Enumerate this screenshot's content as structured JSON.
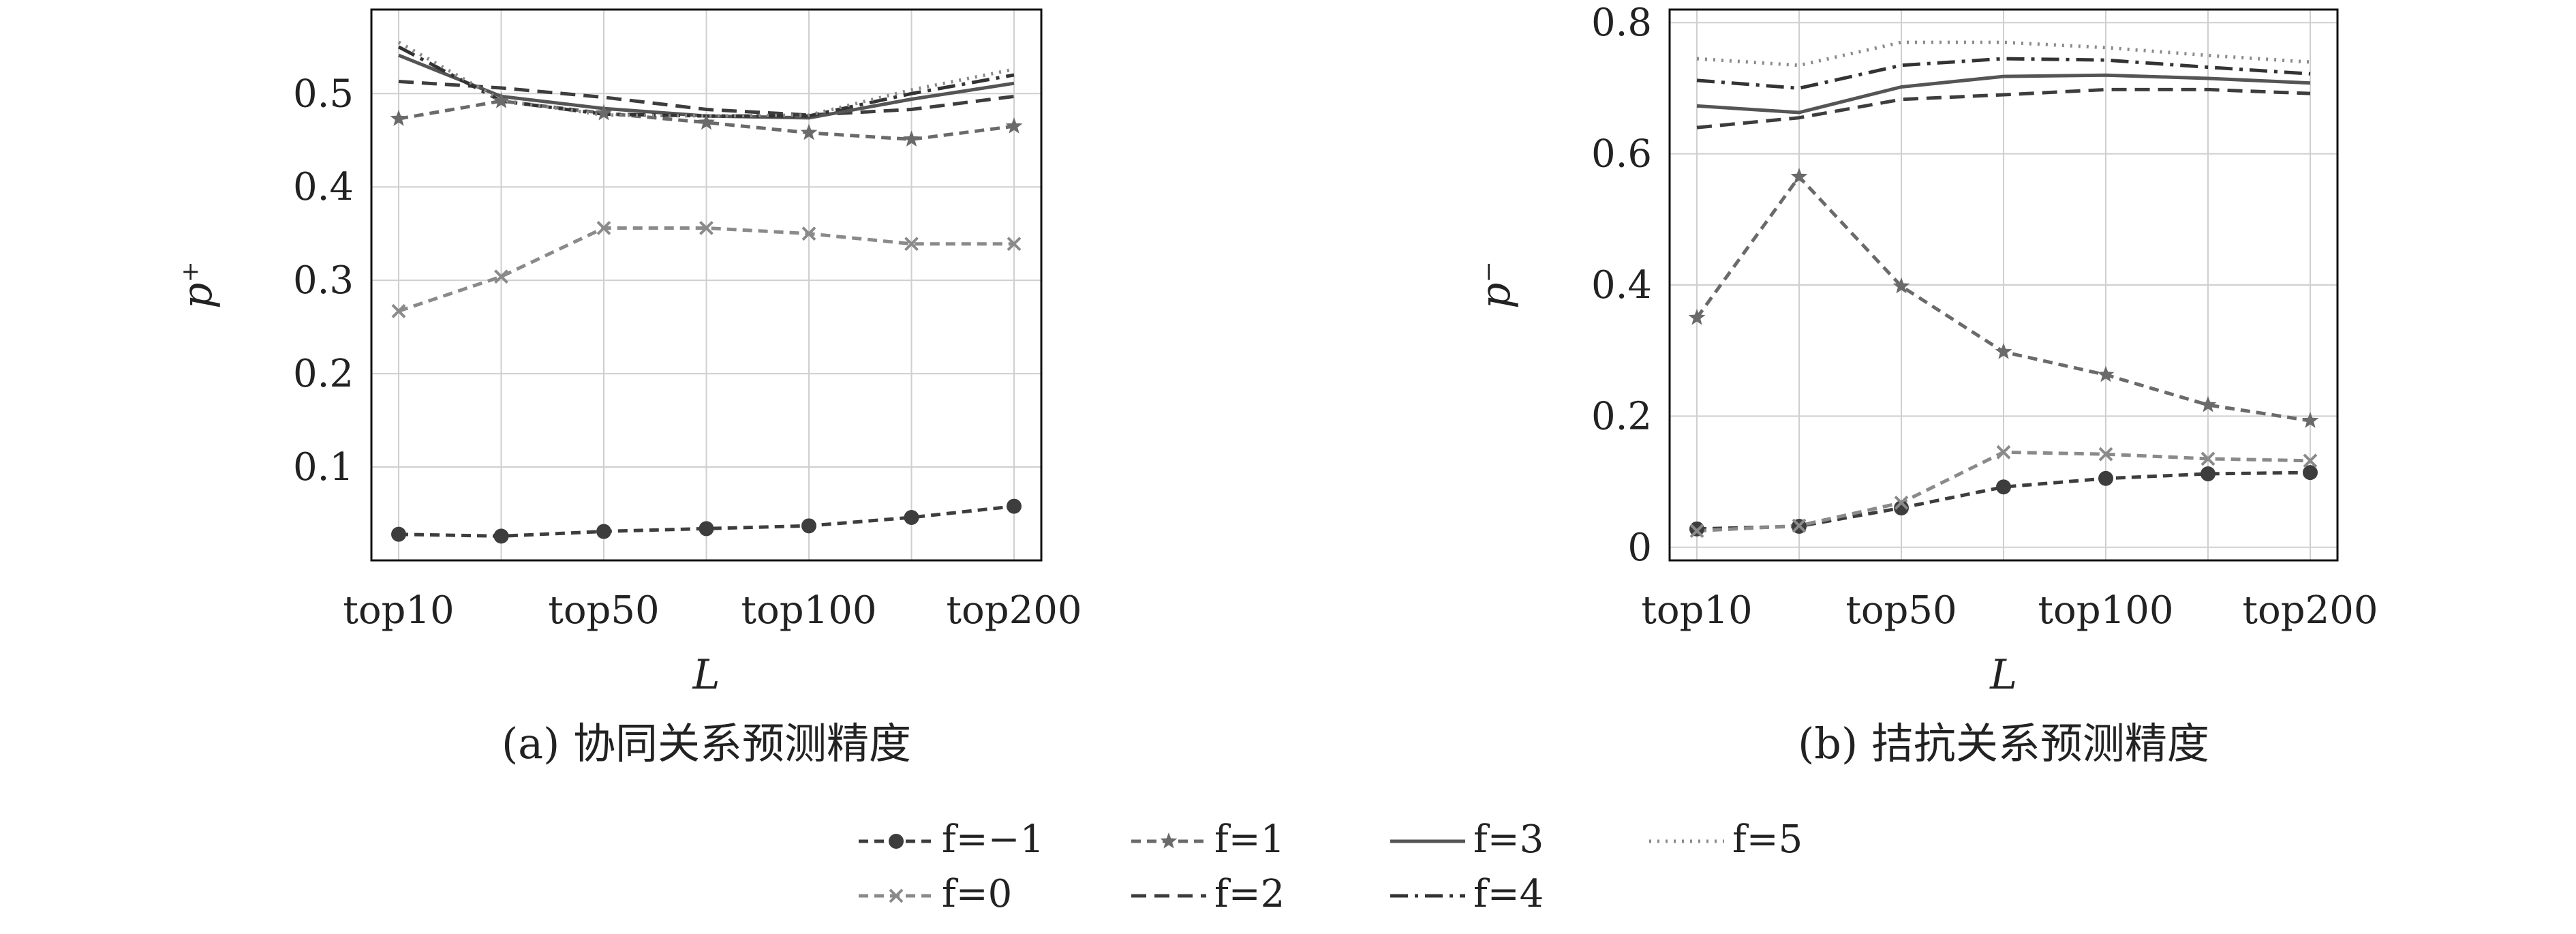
{
  "chart_data": [
    {
      "type": "line",
      "caption": "(a) 协同关系预测精度",
      "xlabel": "L",
      "ylabel": "p⁺",
      "x_labels": [
        "top10",
        "top50",
        "top100",
        "top200"
      ],
      "x_label_positions": [
        10,
        50,
        100,
        200
      ],
      "x": [
        10,
        30,
        50,
        75,
        100,
        150,
        200
      ],
      "y_ticks": [
        "0.1",
        "0.2",
        "0.3",
        "0.4",
        "0.5"
      ],
      "y_tick_values": [
        0.1,
        0.2,
        0.3,
        0.4,
        0.5
      ],
      "ylim": [
        0.0,
        0.59
      ],
      "grid": true,
      "series": [
        {
          "name": "f=−1",
          "values": [
            0.028,
            0.026,
            0.031,
            0.034,
            0.037,
            0.046,
            0.058
          ]
        },
        {
          "name": "f=0",
          "values": [
            0.267,
            0.304,
            0.356,
            0.356,
            0.35,
            0.339,
            0.339
          ]
        },
        {
          "name": "f=1",
          "values": [
            0.473,
            0.492,
            0.479,
            0.469,
            0.458,
            0.451,
            0.465
          ]
        },
        {
          "name": "f=2",
          "values": [
            0.513,
            0.506,
            0.496,
            0.483,
            0.477,
            0.483,
            0.497
          ]
        },
        {
          "name": "f=3",
          "values": [
            0.541,
            0.497,
            0.484,
            0.476,
            0.474,
            0.494,
            0.511
          ]
        },
        {
          "name": "f=4",
          "values": [
            0.55,
            0.492,
            0.478,
            0.476,
            0.476,
            0.5,
            0.52
          ]
        },
        {
          "name": "f=5",
          "values": [
            0.555,
            0.493,
            0.477,
            0.476,
            0.477,
            0.504,
            0.526
          ]
        }
      ]
    },
    {
      "type": "line",
      "caption": "(b) 拮抗关系预测精度",
      "xlabel": "L",
      "ylabel": "p⁻",
      "x_labels": [
        "top10",
        "top50",
        "top100",
        "top200"
      ],
      "x_label_positions": [
        10,
        50,
        100,
        200
      ],
      "x": [
        10,
        30,
        50,
        75,
        100,
        150,
        200
      ],
      "y_ticks": [
        "0",
        "0.2",
        "0.4",
        "0.6",
        "0.8"
      ],
      "y_tick_values": [
        0,
        0.2,
        0.4,
        0.6,
        0.8
      ],
      "ylim": [
        -0.02,
        0.82
      ],
      "grid": true,
      "series": [
        {
          "name": "f=−1",
          "values": [
            0.028,
            0.032,
            0.06,
            0.092,
            0.105,
            0.112,
            0.114
          ]
        },
        {
          "name": "f=0",
          "values": [
            0.025,
            0.033,
            0.068,
            0.145,
            0.142,
            0.135,
            0.132
          ]
        },
        {
          "name": "f=1",
          "values": [
            0.35,
            0.565,
            0.398,
            0.298,
            0.263,
            0.217,
            0.193
          ]
        },
        {
          "name": "f=2",
          "values": [
            0.64,
            0.655,
            0.683,
            0.69,
            0.698,
            0.698,
            0.692
          ]
        },
        {
          "name": "f=3",
          "values": [
            0.673,
            0.663,
            0.702,
            0.718,
            0.72,
            0.715,
            0.708
          ]
        },
        {
          "name": "f=4",
          "values": [
            0.712,
            0.7,
            0.735,
            0.745,
            0.743,
            0.732,
            0.722
          ]
        },
        {
          "name": "f=5",
          "values": [
            0.745,
            0.735,
            0.77,
            0.77,
            0.762,
            0.75,
            0.74
          ]
        }
      ]
    }
  ],
  "legend": {
    "placement": "bottom-center",
    "items": [
      "f=−1",
      "f=1",
      "f=3",
      "f=5",
      "f=0",
      "f=2",
      "f=4"
    ]
  },
  "series_styles": {
    "f=−1": {
      "color": "#3d3d3d",
      "dash": "14 9",
      "marker": "circle"
    },
    "f=0": {
      "color": "#8a8a8a",
      "dash": "14 9",
      "marker": "x"
    },
    "f=1": {
      "color": "#6a6a6a",
      "dash": "14 9",
      "marker": "star"
    },
    "f=2": {
      "color": "#3d3d3d",
      "dash": "22 12",
      "marker": "none"
    },
    "f=3": {
      "color": "#555555",
      "dash": "",
      "marker": "none"
    },
    "f=4": {
      "color": "#333333",
      "dash": "26 10 5 10",
      "marker": "none"
    },
    "f=5": {
      "color": "#8a8a8a",
      "dash": "3 9",
      "marker": "none"
    }
  }
}
